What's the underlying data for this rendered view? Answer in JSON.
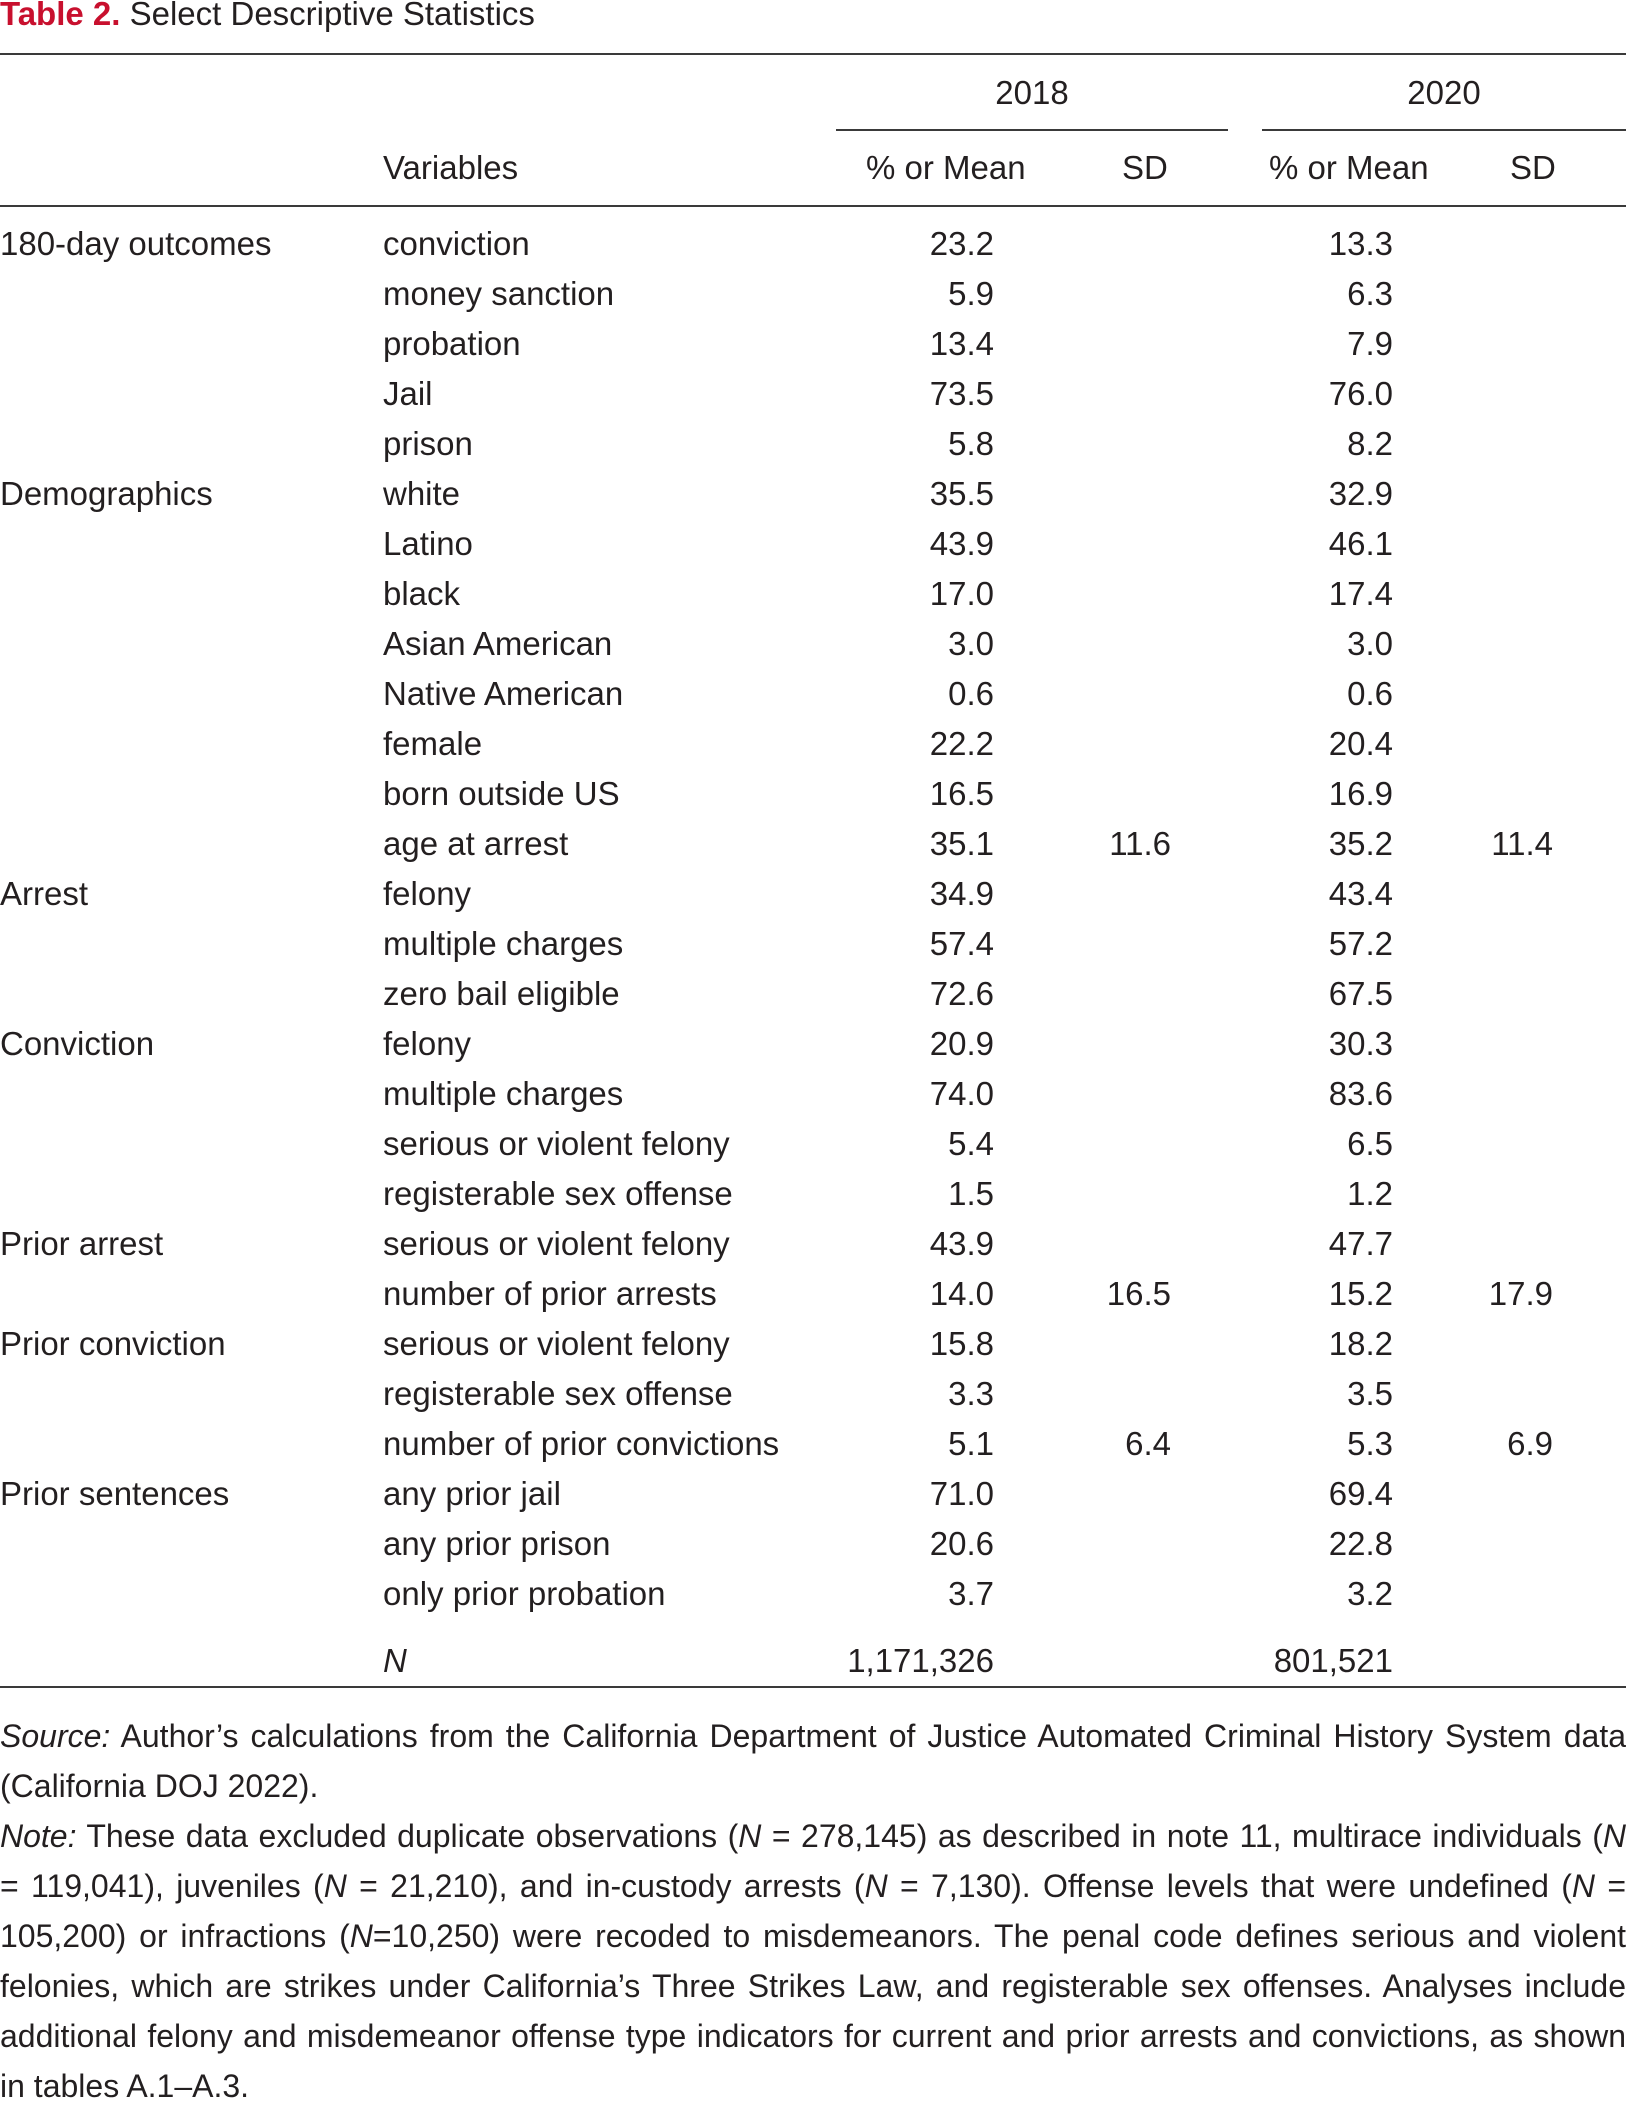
{
  "caption": {
    "label": "Table 2.",
    "title": " Select Descriptive Statistics"
  },
  "table": {
    "years": [
      "2018",
      "2020"
    ],
    "headers": {
      "variables": "Variables",
      "mean": "% or Mean",
      "sd": "SD"
    },
    "rows": [
      {
        "group": "180-day outcomes",
        "variable": "conviction",
        "mean_2018": "23.2",
        "sd_2018": "",
        "mean_2020": "13.3",
        "sd_2020": ""
      },
      {
        "group": "",
        "variable": "money sanction",
        "mean_2018": "5.9",
        "sd_2018": "",
        "mean_2020": "6.3",
        "sd_2020": ""
      },
      {
        "group": "",
        "variable": "probation",
        "mean_2018": "13.4",
        "sd_2018": "",
        "mean_2020": "7.9",
        "sd_2020": ""
      },
      {
        "group": "",
        "variable": "Jail",
        "mean_2018": "73.5",
        "sd_2018": "",
        "mean_2020": "76.0",
        "sd_2020": ""
      },
      {
        "group": "",
        "variable": "prison",
        "mean_2018": "5.8",
        "sd_2018": "",
        "mean_2020": "8.2",
        "sd_2020": ""
      },
      {
        "group": "Demographics",
        "variable": "white",
        "mean_2018": "35.5",
        "sd_2018": "",
        "mean_2020": "32.9",
        "sd_2020": ""
      },
      {
        "group": "",
        "variable": "Latino",
        "mean_2018": "43.9",
        "sd_2018": "",
        "mean_2020": "46.1",
        "sd_2020": ""
      },
      {
        "group": "",
        "variable": "black",
        "mean_2018": "17.0",
        "sd_2018": "",
        "mean_2020": "17.4",
        "sd_2020": ""
      },
      {
        "group": "",
        "variable": "Asian American",
        "mean_2018": "3.0",
        "sd_2018": "",
        "mean_2020": "3.0",
        "sd_2020": ""
      },
      {
        "group": "",
        "variable": "Native American",
        "mean_2018": "0.6",
        "sd_2018": "",
        "mean_2020": "0.6",
        "sd_2020": ""
      },
      {
        "group": "",
        "variable": "female",
        "mean_2018": "22.2",
        "sd_2018": "",
        "mean_2020": "20.4",
        "sd_2020": ""
      },
      {
        "group": "",
        "variable": "born outside US",
        "mean_2018": "16.5",
        "sd_2018": "",
        "mean_2020": "16.9",
        "sd_2020": ""
      },
      {
        "group": "",
        "variable": "age at arrest",
        "mean_2018": "35.1",
        "sd_2018": "11.6",
        "mean_2020": "35.2",
        "sd_2020": "11.4"
      },
      {
        "group": "Arrest",
        "variable": "felony",
        "mean_2018": "34.9",
        "sd_2018": "",
        "mean_2020": "43.4",
        "sd_2020": ""
      },
      {
        "group": "",
        "variable": "multiple charges",
        "mean_2018": "57.4",
        "sd_2018": "",
        "mean_2020": "57.2",
        "sd_2020": ""
      },
      {
        "group": "",
        "variable": "zero bail eligible",
        "mean_2018": "72.6",
        "sd_2018": "",
        "mean_2020": "67.5",
        "sd_2020": ""
      },
      {
        "group": "Conviction",
        "variable": "felony",
        "mean_2018": "20.9",
        "sd_2018": "",
        "mean_2020": "30.3",
        "sd_2020": ""
      },
      {
        "group": "",
        "variable": "multiple charges",
        "mean_2018": "74.0",
        "sd_2018": "",
        "mean_2020": "83.6",
        "sd_2020": ""
      },
      {
        "group": "",
        "variable": "serious or violent felony",
        "mean_2018": "5.4",
        "sd_2018": "",
        "mean_2020": "6.5",
        "sd_2020": ""
      },
      {
        "group": "",
        "variable": "registerable sex offense",
        "mean_2018": "1.5",
        "sd_2018": "",
        "mean_2020": "1.2",
        "sd_2020": ""
      },
      {
        "group": "Prior arrest",
        "variable": "serious or violent felony",
        "mean_2018": "43.9",
        "sd_2018": "",
        "mean_2020": "47.7",
        "sd_2020": ""
      },
      {
        "group": "",
        "variable": "number of prior arrests",
        "mean_2018": "14.0",
        "sd_2018": "16.5",
        "mean_2020": "15.2",
        "sd_2020": "17.9"
      },
      {
        "group": "Prior conviction",
        "variable": "serious or violent felony",
        "mean_2018": "15.8",
        "sd_2018": "",
        "mean_2020": "18.2",
        "sd_2020": ""
      },
      {
        "group": "",
        "variable": "registerable sex offense",
        "mean_2018": "3.3",
        "sd_2018": "",
        "mean_2020": "3.5",
        "sd_2020": ""
      },
      {
        "group": "",
        "variable": "number of prior convictions",
        "mean_2018": "5.1",
        "sd_2018": "6.4",
        "mean_2020": "5.3",
        "sd_2020": "6.9"
      },
      {
        "group": "Prior sentences",
        "variable": "any prior jail",
        "mean_2018": "71.0",
        "sd_2018": "",
        "mean_2020": "69.4",
        "sd_2020": ""
      },
      {
        "group": "",
        "variable": "any prior prison",
        "mean_2018": "20.6",
        "sd_2018": "",
        "mean_2020": "22.8",
        "sd_2020": ""
      },
      {
        "group": "",
        "variable": "only prior probation",
        "mean_2018": "3.7",
        "sd_2018": "",
        "mean_2020": "3.2",
        "sd_2020": ""
      }
    ],
    "n_row": {
      "label": "N",
      "value_2018": "1,171,326",
      "value_2020": "801,521"
    }
  },
  "notes": {
    "source_label": "Source:",
    "source_text": " Author’s calculations from the California Department of Justice Automated Criminal History System data (California DOJ 2022).",
    "note_label": "Note:",
    "note_parts": [
      {
        "t": " These data excluded duplicate observations (",
        "i": false
      },
      {
        "t": "N",
        "i": true
      },
      {
        "t": " = 278,145) as described in note 11, multirace indi­viduals (",
        "i": false
      },
      {
        "t": "N",
        "i": true
      },
      {
        "t": " = 119,041), juveniles (",
        "i": false
      },
      {
        "t": "N",
        "i": true
      },
      {
        "t": " = 21,210), and in-custody arrests (",
        "i": false
      },
      {
        "t": "N",
        "i": true
      },
      {
        "t": " = 7,130). Offense levels that were undefined (",
        "i": false
      },
      {
        "t": "N",
        "i": true
      },
      {
        "t": " = 105,200) or infractions (",
        "i": false
      },
      {
        "t": "N",
        "i": true
      },
      {
        "t": "=10,250) were recoded to misdemeanors. The penal code de­fines serious and violent felonies, which are strikes under California’s Three Strikes Law, and register­able sex offenses. Analyses include additional felony and misdemeanor offense type indicators for cur­rent and prior arrests and convictions, as shown in tables A.1–A.3.",
        "i": false
      }
    ]
  }
}
